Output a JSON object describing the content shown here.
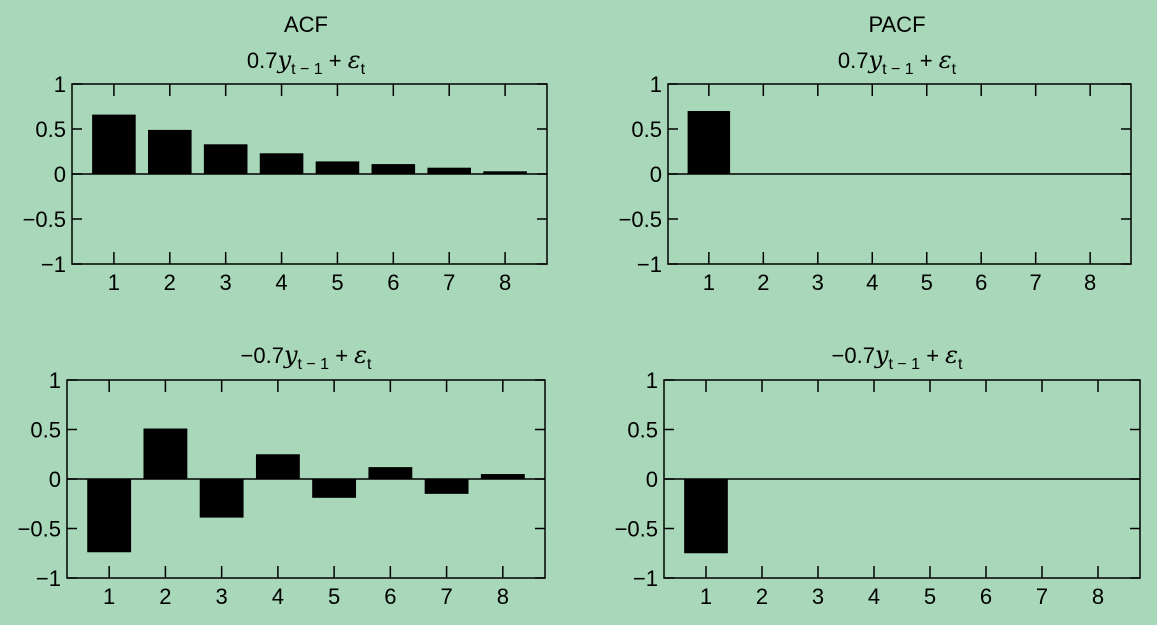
{
  "figure": {
    "col_titles": [
      "ACF",
      "PACF"
    ],
    "background": "#a8d8b9",
    "bar_color": "#000000"
  },
  "chart_data": [
    {
      "type": "bar",
      "title": "ACF",
      "equation": {
        "coef": "0.7",
        "var": "y",
        "sub": "t − 1",
        "plus": "+",
        "err": "ε",
        "err_sub": "t"
      },
      "categories": [
        "1",
        "2",
        "3",
        "4",
        "5",
        "6",
        "7",
        "8"
      ],
      "values": [
        0.66,
        0.49,
        0.33,
        0.23,
        0.14,
        0.11,
        0.07,
        0.03
      ],
      "ylim": [
        -1,
        1
      ],
      "yticks": [
        "1",
        "0.5",
        "0",
        "−0.5",
        "−1"
      ],
      "grid": false
    },
    {
      "type": "bar",
      "title": "PACF",
      "equation": {
        "coef": "0.7",
        "var": "y",
        "sub": "t − 1",
        "plus": "+",
        "err": "ε",
        "err_sub": "t"
      },
      "categories": [
        "1",
        "2",
        "3",
        "4",
        "5",
        "6",
        "7",
        "8"
      ],
      "values": [
        0.7,
        0,
        0,
        0,
        0,
        0,
        0,
        0
      ],
      "ylim": [
        -1,
        1
      ],
      "yticks": [
        "1",
        "0.5",
        "0",
        "−0.5",
        "−1"
      ],
      "grid": false
    },
    {
      "type": "bar",
      "title": "",
      "equation": {
        "coef": "−0.7",
        "var": "y",
        "sub": "t − 1",
        "plus": "+",
        "err": "ε",
        "err_sub": "t"
      },
      "categories": [
        "1",
        "2",
        "3",
        "4",
        "5",
        "6",
        "7",
        "8"
      ],
      "values": [
        -0.74,
        0.51,
        -0.39,
        0.25,
        -0.19,
        0.12,
        -0.15,
        0.05
      ],
      "ylim": [
        -1,
        1
      ],
      "yticks": [
        "1",
        "0.5",
        "0",
        "−0.5",
        "−1"
      ],
      "grid": false
    },
    {
      "type": "bar",
      "title": "",
      "equation": {
        "coef": "−0.7",
        "var": "y",
        "sub": "t − 1",
        "plus": "+",
        "err": "ε",
        "err_sub": "t"
      },
      "categories": [
        "1",
        "2",
        "3",
        "4",
        "5",
        "6",
        "7",
        "8"
      ],
      "values": [
        -0.75,
        0,
        0,
        0,
        0,
        0,
        0,
        0
      ],
      "ylim": [
        -1,
        1
      ],
      "yticks": [
        "1",
        "0.5",
        "0",
        "−0.5",
        "−1"
      ],
      "grid": false
    }
  ]
}
